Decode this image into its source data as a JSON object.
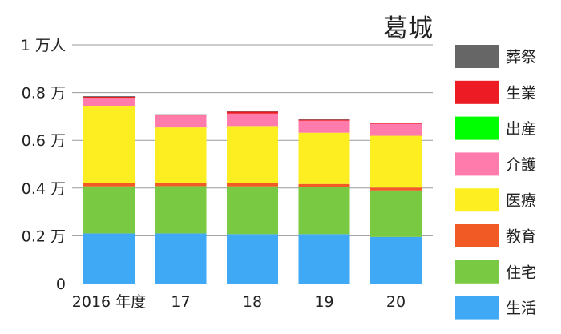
{
  "chart_data": {
    "type": "bar",
    "stacked": true,
    "title": "葛城",
    "categories": [
      "2016 年度",
      "17",
      "18",
      "19",
      "20"
    ],
    "y_ticks": [
      {
        "value": 0,
        "label": "0"
      },
      {
        "value": 0.2,
        "label": "0.2 万"
      },
      {
        "value": 0.4,
        "label": "0.4 万"
      },
      {
        "value": 0.6,
        "label": "0.6 万"
      },
      {
        "value": 0.8,
        "label": "0.8 万"
      },
      {
        "value": 1.0,
        "label": "1 万人"
      }
    ],
    "ylim": [
      0,
      1.0
    ],
    "grid": true,
    "legend_position": "right",
    "series": [
      {
        "name": "生活",
        "color": "#3FA9F5",
        "values": [
          0.21,
          0.21,
          0.207,
          0.207,
          0.195
        ]
      },
      {
        "name": "住宅",
        "color": "#7AC943",
        "values": [
          0.197,
          0.198,
          0.2,
          0.198,
          0.195
        ]
      },
      {
        "name": "教育",
        "color": "#F15A24",
        "values": [
          0.015,
          0.015,
          0.013,
          0.012,
          0.012
        ]
      },
      {
        "name": "医療",
        "color": "#FCEE21",
        "values": [
          0.323,
          0.231,
          0.24,
          0.215,
          0.217
        ]
      },
      {
        "name": "介護",
        "color": "#FF7BAC",
        "values": [
          0.033,
          0.05,
          0.052,
          0.05,
          0.05
        ]
      },
      {
        "name": "出産",
        "color": "#00FF00",
        "values": [
          0.0,
          0.0,
          0.0,
          0.0,
          0.0
        ]
      },
      {
        "name": "生業",
        "color": "#ED1C24",
        "values": [
          0.004,
          0.003,
          0.008,
          0.004,
          0.003
        ]
      },
      {
        "name": "葬祭",
        "color": "#666666",
        "values": [
          0.003,
          0.002,
          0.002,
          0.002,
          0.002
        ]
      }
    ]
  }
}
